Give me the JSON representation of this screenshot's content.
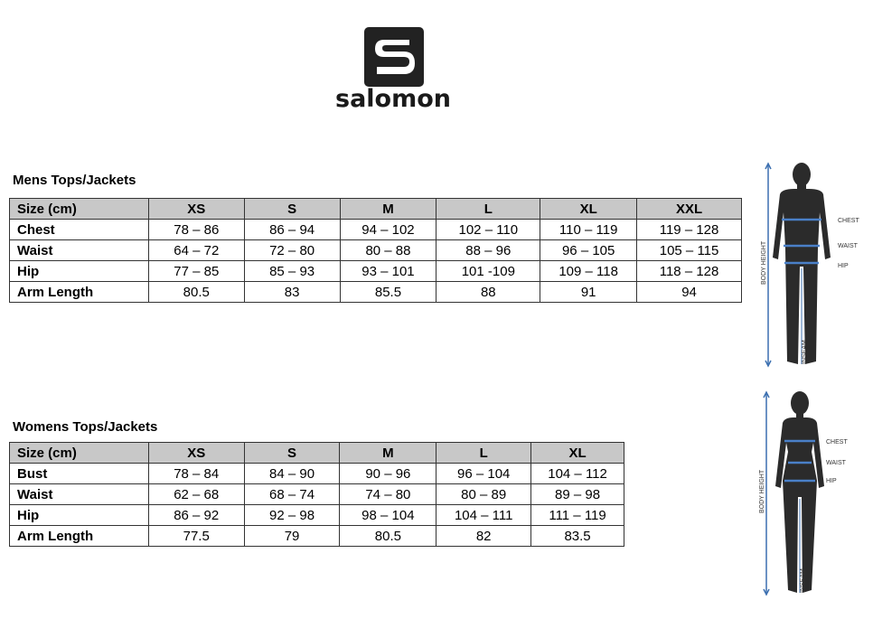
{
  "brand": {
    "name": "salomon",
    "logo_icon": "salomon-s-logo"
  },
  "mens": {
    "title": "Mens Tops/Jackets",
    "headers": [
      "Size (cm)",
      "XS",
      "S",
      "M",
      "L",
      "XL",
      "XXL"
    ],
    "rows": [
      {
        "label": "Chest",
        "values": [
          "78 – 86",
          "86 – 94",
          "94 – 102",
          "102 – 110",
          "110 – 119",
          "119 – 128"
        ]
      },
      {
        "label": "Waist",
        "values": [
          "64 – 72",
          "72 – 80",
          "80 – 88",
          "88 – 96",
          "96 – 105",
          "105 – 115"
        ]
      },
      {
        "label": "Hip",
        "values": [
          "77 – 85",
          "85 – 93",
          "93 – 101",
          "101 -109",
          "109 – 118",
          "118 – 128"
        ]
      },
      {
        "label": "Arm Length",
        "values": [
          "80.5",
          "83",
          "85.5",
          "88",
          "91",
          "94"
        ]
      }
    ]
  },
  "womens": {
    "title": "Womens Tops/Jackets",
    "headers": [
      "Size (cm)",
      "XS",
      "S",
      "M",
      "L",
      "XL"
    ],
    "rows": [
      {
        "label": "Bust",
        "values": [
          "78 – 84",
          "84 – 90",
          "90 – 96",
          "96 – 104",
          "104 – 112"
        ]
      },
      {
        "label": "Waist",
        "values": [
          "62 – 68",
          "68 – 74",
          "74 – 80",
          "80 – 89",
          "89 – 98"
        ]
      },
      {
        "label": "Hip",
        "values": [
          "86 – 92",
          "92 – 98",
          "98 – 104",
          "104 – 111",
          "111 – 119"
        ]
      },
      {
        "label": "Arm Length",
        "values": [
          "77.5",
          "79",
          "80.5",
          "82",
          "83.5"
        ]
      }
    ]
  },
  "figure_labels": {
    "men": {
      "chest": "CHEST",
      "waist": "WAIST",
      "hip": "HIP",
      "height": "BODY HEIGHT",
      "inseam": "INSEAM"
    },
    "women": {
      "chest": "CHEST",
      "waist": "WAIST",
      "hip": "HIP",
      "height": "BODY HEIGHT",
      "inseam": "INSEAM"
    }
  },
  "colors": {
    "header_bg": "#c8c8c8",
    "measure_line": "#3b6fb0",
    "silhouette": "#2b2b2b"
  }
}
